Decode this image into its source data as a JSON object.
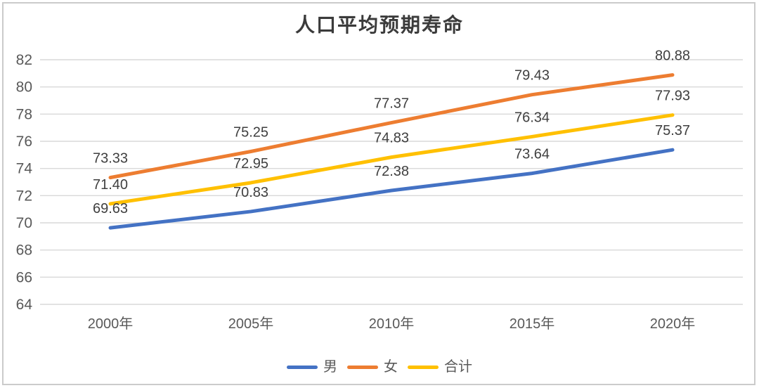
{
  "chart_data": {
    "type": "line",
    "title": "人口平均预期寿命",
    "categories": [
      "2000年",
      "2005年",
      "2010年",
      "2015年",
      "2020年"
    ],
    "series": [
      {
        "id": "male",
        "name": "男",
        "color": "#4472C4",
        "values": [
          69.63,
          70.83,
          72.38,
          73.64,
          75.37
        ]
      },
      {
        "id": "female",
        "name": "女",
        "color": "#ED7D31",
        "values": [
          73.33,
          75.25,
          77.37,
          79.43,
          80.88
        ]
      },
      {
        "id": "total",
        "name": "合计",
        "color": "#FFC000",
        "values": [
          71.4,
          72.95,
          74.83,
          76.34,
          77.93
        ]
      }
    ],
    "ylim": [
      64,
      82
    ],
    "ytick_step": 2,
    "yticks": [
      64,
      66,
      68,
      70,
      72,
      74,
      76,
      78,
      80,
      82
    ],
    "grid": true,
    "data_labels": true,
    "data_label_decimals": 2,
    "legend_position": "bottom",
    "xlabel": "",
    "ylabel": ""
  },
  "colors": {
    "gridline": "#d9d9d9",
    "axis_text": "#595959",
    "data_label_text": "#3f3f3f",
    "title_text": "#3b3b3b",
    "frame_border": "#cbcbcb",
    "background": "#ffffff"
  }
}
